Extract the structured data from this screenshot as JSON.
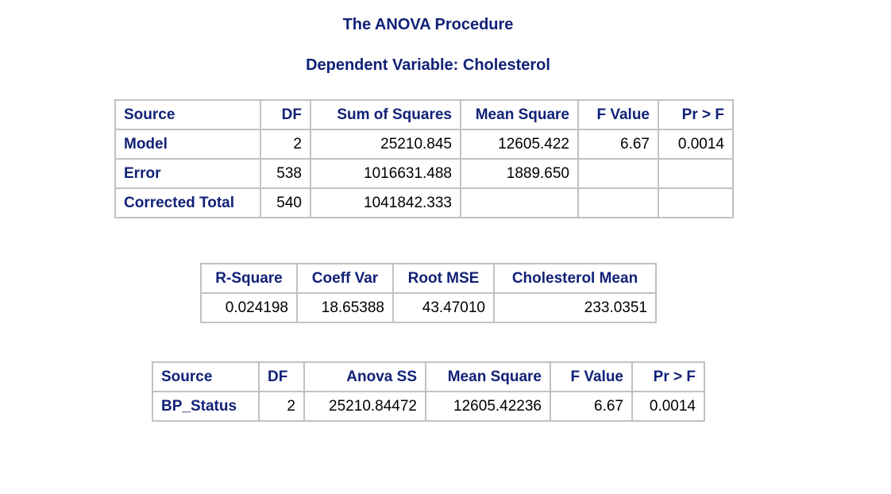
{
  "titles": {
    "procedure": "The ANOVA Procedure",
    "dependent": "Dependent Variable: Cholesterol"
  },
  "anova_table": {
    "headers": [
      "Source",
      "DF",
      "Sum of Squares",
      "Mean Square",
      "F Value",
      "Pr > F"
    ],
    "rows": [
      {
        "source": "Model",
        "df": "2",
        "ss": "25210.845",
        "ms": "12605.422",
        "f": "6.67",
        "p": "0.0014"
      },
      {
        "source": "Error",
        "df": "538",
        "ss": "1016631.488",
        "ms": "1889.650",
        "f": "",
        "p": ""
      },
      {
        "source": "Corrected Total",
        "df": "540",
        "ss": "1041842.333",
        "ms": "",
        "f": "",
        "p": ""
      }
    ]
  },
  "fit_table": {
    "headers": [
      "R-Square",
      "Coeff Var",
      "Root MSE",
      "Cholesterol Mean"
    ],
    "values": [
      "0.024198",
      "18.65388",
      "43.47010",
      "233.0351"
    ]
  },
  "effect_table": {
    "headers": [
      "Source",
      "DF",
      "Anova SS",
      "Mean Square",
      "F Value",
      "Pr > F"
    ],
    "rows": [
      {
        "source": "BP_Status",
        "df": "2",
        "ss": "25210.84472",
        "ms": "12605.42236",
        "f": "6.67",
        "p": "0.0014"
      }
    ]
  },
  "colors": {
    "header_text": "#112277",
    "grid_border": "#c1c1c1",
    "background": "#ffffff"
  }
}
